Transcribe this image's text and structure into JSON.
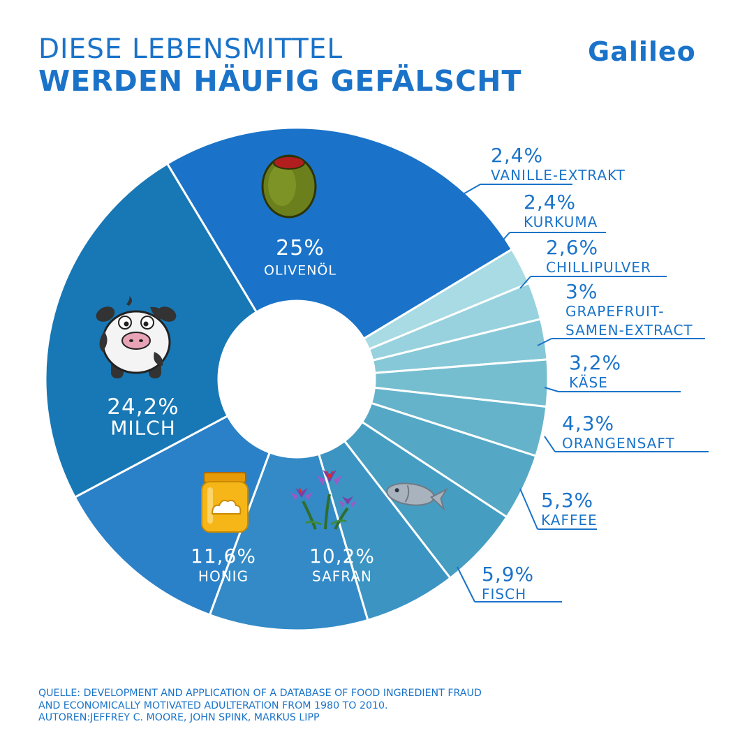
{
  "header": {
    "title_line1": "DIESE LEBENSMITTEL",
    "title_line2": "WERDEN HÄUFIG GEFÄLSCHT",
    "logo": "Galileo"
  },
  "chart_data": {
    "type": "pie",
    "donut": true,
    "slices": [
      {
        "label": "OLIVENÖL",
        "value": 25,
        "display": "25%",
        "color": "#1a73c9",
        "icon": "olive-icon"
      },
      {
        "label": "VANILLE-EXTRAKT",
        "value": 2.4,
        "display": "2,4%",
        "color": "#a8dbe3"
      },
      {
        "label": "KURKUMA",
        "value": 2.4,
        "display": "2,4%",
        "color": "#97d2de"
      },
      {
        "label": "CHILLIPULVER",
        "value": 2.6,
        "display": "2,6%",
        "color": "#86c8d7"
      },
      {
        "label": "GRAPEFRUIT-SAMEN-EXTRACT",
        "label_lines": [
          "GRAPEFRUIT-",
          "SAMEN-EXTRACT"
        ],
        "value": 3,
        "display": "3%",
        "color": "#75bed0"
      },
      {
        "label": "KÄSE",
        "value": 3.2,
        "display": "3,2%",
        "color": "#64b3ca"
      },
      {
        "label": "ORANGENSAFT",
        "value": 4.3,
        "display": "4,3%",
        "color": "#54a8c5"
      },
      {
        "label": "KAFFEE",
        "value": 5.3,
        "display": "5,3%",
        "color": "#469dc2"
      },
      {
        "label": "FISCH",
        "value": 5.9,
        "display": "5,9%",
        "color": "#3c94c3",
        "icon": "fish-icon"
      },
      {
        "label": "SAFRAN",
        "value": 10.2,
        "display": "10,2%",
        "color": "#338ac6",
        "icon": "saffron-flower-icon"
      },
      {
        "label": "HONIG",
        "value": 11.6,
        "display": "11,6%",
        "color": "#2b81c8",
        "icon": "honey-jar-icon"
      },
      {
        "label": "MILCH",
        "value": 24.2,
        "display": "24,2%",
        "color": "#1878b5",
        "icon": "cow-icon"
      }
    ]
  },
  "source": {
    "line1": "QUELLE: DEVELOPMENT AND APPLICATION OF A DATABASE OF FOOD INGREDIENT FRAUD",
    "line2": "AND ECONOMICALLY MOTIVATED ADULTERATION FROM 1980 TO 2010.",
    "line3": "AUTOREN:JEFFREY C. MOORE, JOHN SPINK, MARKUS LIPP"
  }
}
